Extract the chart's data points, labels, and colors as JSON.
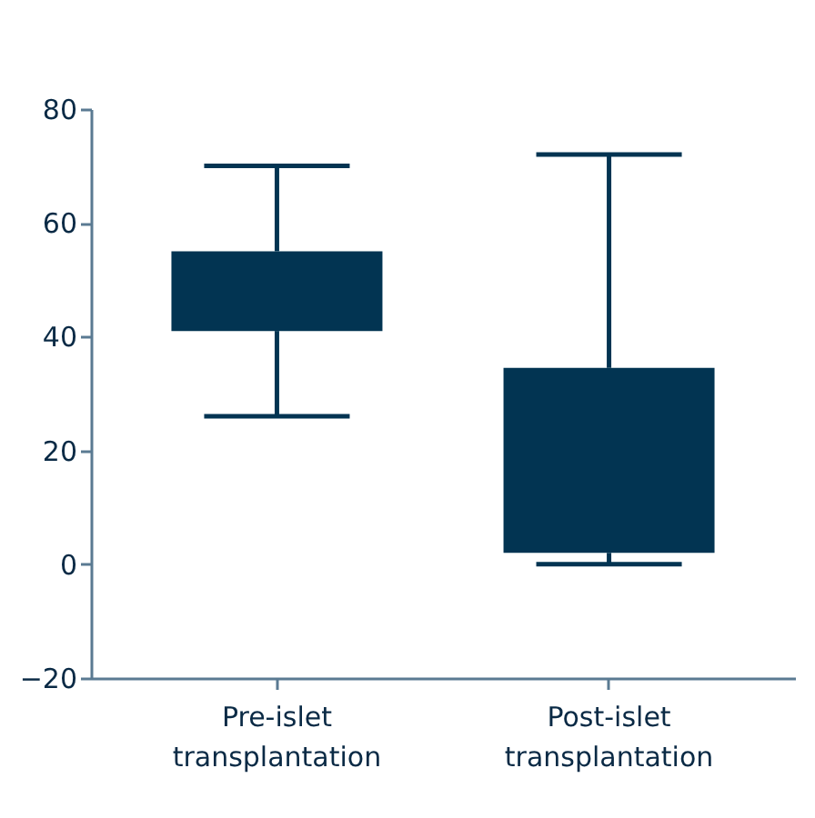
{
  "chart_data": {
    "type": "box",
    "categories": [
      "Pre-islet transplantation",
      "Post-islet transplantation"
    ],
    "boxes": [
      {
        "low": 26,
        "q1": 41,
        "q3": 55,
        "high": 70
      },
      {
        "low": 0,
        "q1": 2,
        "q3": 34.5,
        "high": 72
      }
    ],
    "color": "#023452",
    "ylim": [
      -20,
      80
    ],
    "yticks": [
      -20,
      0,
      20,
      40,
      60,
      80
    ],
    "grid": false
  }
}
